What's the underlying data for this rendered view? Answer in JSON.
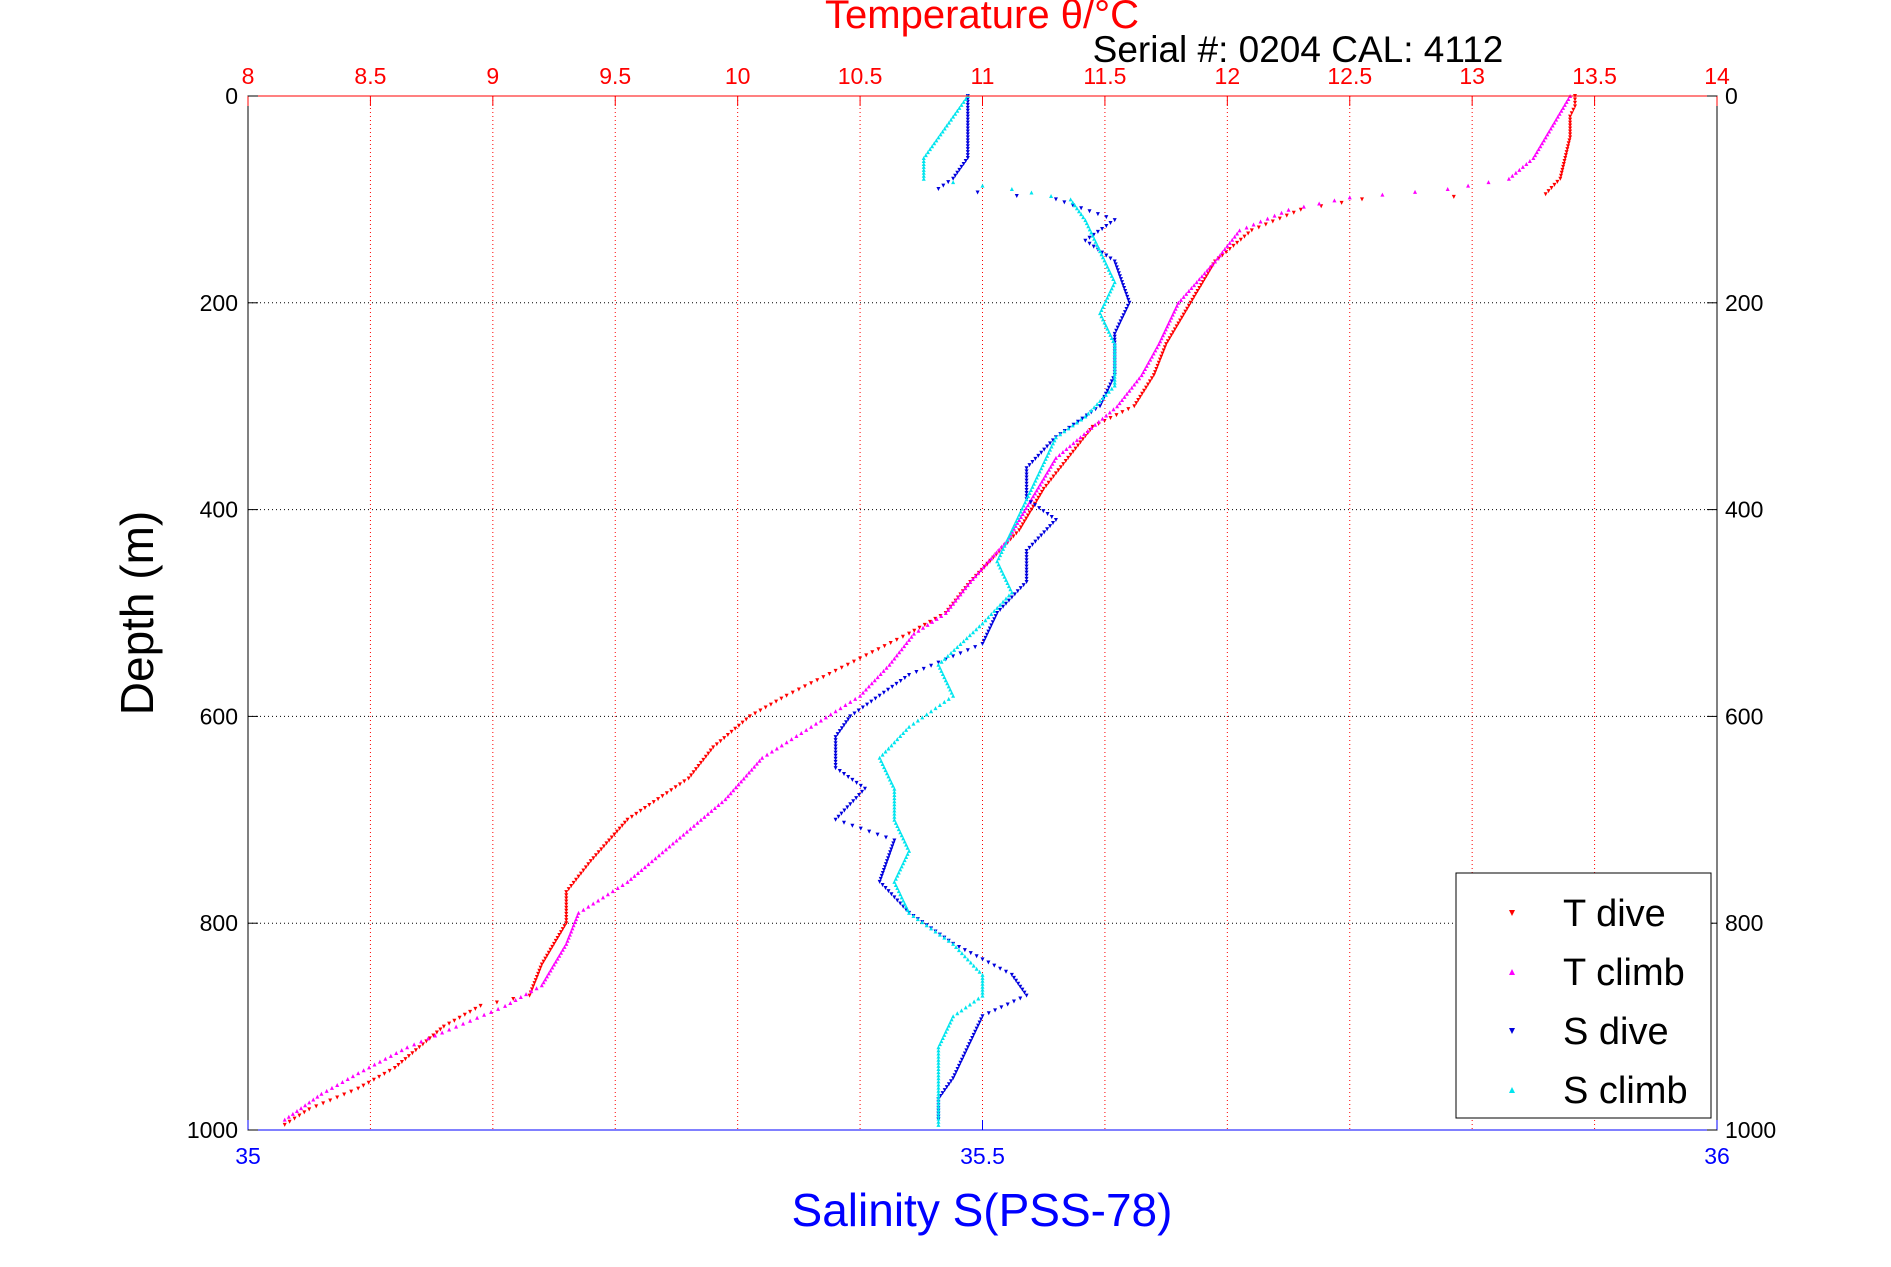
{
  "chart_data": {
    "type": "scatter",
    "title_top": "Temperature θ/°C",
    "serial_text": "Serial #: 0204  CAL: 4112",
    "xlabel_bottom": "Salinity S(PSS-78)",
    "ylabel": "Depth (m)",
    "ylim": [
      0,
      1000
    ],
    "yticks": [
      0,
      200,
      400,
      600,
      800,
      1000
    ],
    "y_inverted": true,
    "top_axis": {
      "range": [
        8,
        14
      ],
      "ticks": [
        "8",
        "8.5",
        "9",
        "9.5",
        "10",
        "10.5",
        "11",
        "11.5",
        "12",
        "12.5",
        "13",
        "13.5",
        "14"
      ]
    },
    "bottom_axis": {
      "range": [
        35,
        36
      ],
      "ticks": [
        "35",
        "35.5",
        "36"
      ]
    },
    "grid": true,
    "legend_position": "bottom-right",
    "legend": [
      "T dive",
      "T climb",
      "S dive",
      "S climb"
    ],
    "colors": {
      "T dive": "#ff0000",
      "T climb": "#ff00ff",
      "S dive": "#0000dd",
      "S climb": "#00e5ee",
      "top_axis": "#ff0000",
      "bottom_axis": "#0000ff",
      "grid_vertical": "#ff0000",
      "grid_horizontal": "#000000"
    },
    "series": [
      {
        "name": "T dive",
        "axis": "top",
        "marker": "triangle-down",
        "points": [
          [
            13.42,
            0
          ],
          [
            13.42,
            10
          ],
          [
            13.4,
            20
          ],
          [
            13.4,
            40
          ],
          [
            13.38,
            60
          ],
          [
            13.36,
            80
          ],
          [
            13.3,
            95
          ],
          [
            12.55,
            100
          ],
          [
            12.3,
            110
          ],
          [
            12.1,
            130
          ],
          [
            11.95,
            160
          ],
          [
            11.85,
            200
          ],
          [
            11.75,
            240
          ],
          [
            11.7,
            270
          ],
          [
            11.62,
            300
          ],
          [
            11.45,
            320
          ],
          [
            11.35,
            350
          ],
          [
            11.25,
            380
          ],
          [
            11.2,
            400
          ],
          [
            11.15,
            420
          ],
          [
            10.95,
            470
          ],
          [
            10.85,
            500
          ],
          [
            10.7,
            520
          ],
          [
            10.45,
            550
          ],
          [
            10.2,
            580
          ],
          [
            10.05,
            600
          ],
          [
            9.9,
            630
          ],
          [
            9.8,
            660
          ],
          [
            9.55,
            700
          ],
          [
            9.4,
            740
          ],
          [
            9.3,
            770
          ],
          [
            9.3,
            800
          ],
          [
            9.2,
            840
          ],
          [
            9.15,
            870
          ],
          [
            8.95,
            880
          ],
          [
            8.8,
            900
          ],
          [
            8.6,
            940
          ],
          [
            8.45,
            960
          ],
          [
            8.25,
            980
          ],
          [
            8.15,
            995
          ]
        ]
      },
      {
        "name": "T climb",
        "axis": "top",
        "marker": "triangle-up",
        "points": [
          [
            13.4,
            0
          ],
          [
            13.35,
            20
          ],
          [
            13.3,
            40
          ],
          [
            13.25,
            60
          ],
          [
            13.15,
            80
          ],
          [
            12.9,
            90
          ],
          [
            12.5,
            98
          ],
          [
            12.25,
            110
          ],
          [
            12.05,
            130
          ],
          [
            11.95,
            160
          ],
          [
            11.8,
            200
          ],
          [
            11.72,
            240
          ],
          [
            11.65,
            270
          ],
          [
            11.55,
            300
          ],
          [
            11.4,
            330
          ],
          [
            11.3,
            350
          ],
          [
            11.2,
            390
          ],
          [
            11.1,
            430
          ],
          [
            10.95,
            470
          ],
          [
            10.85,
            500
          ],
          [
            10.72,
            520
          ],
          [
            10.62,
            550
          ],
          [
            10.5,
            580
          ],
          [
            10.3,
            610
          ],
          [
            10.1,
            640
          ],
          [
            9.95,
            680
          ],
          [
            9.75,
            720
          ],
          [
            9.55,
            760
          ],
          [
            9.35,
            790
          ],
          [
            9.3,
            820
          ],
          [
            9.2,
            860
          ],
          [
            9.05,
            880
          ],
          [
            8.85,
            900
          ],
          [
            8.65,
            920
          ],
          [
            8.45,
            945
          ],
          [
            8.3,
            965
          ],
          [
            8.15,
            990
          ]
        ]
      },
      {
        "name": "S dive",
        "axis": "bottom",
        "marker": "triangle-down",
        "points": [
          [
            35.49,
            0
          ],
          [
            35.49,
            20
          ],
          [
            35.49,
            40
          ],
          [
            35.49,
            60
          ],
          [
            35.48,
            80
          ],
          [
            35.47,
            90
          ],
          [
            35.55,
            100
          ],
          [
            35.59,
            120
          ],
          [
            35.57,
            140
          ],
          [
            35.59,
            160
          ],
          [
            35.6,
            200
          ],
          [
            35.59,
            230
          ],
          [
            35.59,
            270
          ],
          [
            35.58,
            300
          ],
          [
            35.55,
            330
          ],
          [
            35.53,
            360
          ],
          [
            35.53,
            390
          ],
          [
            35.55,
            410
          ],
          [
            35.53,
            440
          ],
          [
            35.53,
            470
          ],
          [
            35.51,
            500
          ],
          [
            35.5,
            530
          ],
          [
            35.45,
            560
          ],
          [
            35.43,
            580
          ],
          [
            35.41,
            600
          ],
          [
            35.4,
            620
          ],
          [
            35.4,
            650
          ],
          [
            35.42,
            670
          ],
          [
            35.4,
            700
          ],
          [
            35.44,
            720
          ],
          [
            35.43,
            760
          ],
          [
            35.45,
            790
          ],
          [
            35.48,
            820
          ],
          [
            35.52,
            850
          ],
          [
            35.53,
            870
          ],
          [
            35.5,
            890
          ],
          [
            35.49,
            920
          ],
          [
            35.48,
            950
          ],
          [
            35.47,
            970
          ],
          [
            35.47,
            990
          ]
        ]
      },
      {
        "name": "S climb",
        "axis": "bottom",
        "marker": "triangle-up",
        "points": [
          [
            35.49,
            0
          ],
          [
            35.48,
            20
          ],
          [
            35.47,
            40
          ],
          [
            35.46,
            60
          ],
          [
            35.46,
            80
          ],
          [
            35.52,
            90
          ],
          [
            35.56,
            100
          ],
          [
            35.57,
            120
          ],
          [
            35.58,
            150
          ],
          [
            35.59,
            180
          ],
          [
            35.58,
            210
          ],
          [
            35.59,
            240
          ],
          [
            35.59,
            280
          ],
          [
            35.57,
            310
          ],
          [
            35.55,
            330
          ],
          [
            35.54,
            360
          ],
          [
            35.53,
            390
          ],
          [
            35.52,
            420
          ],
          [
            35.51,
            450
          ],
          [
            35.52,
            480
          ],
          [
            35.5,
            510
          ],
          [
            35.47,
            550
          ],
          [
            35.48,
            580
          ],
          [
            35.45,
            610
          ],
          [
            35.43,
            640
          ],
          [
            35.44,
            670
          ],
          [
            35.44,
            700
          ],
          [
            35.45,
            730
          ],
          [
            35.44,
            760
          ],
          [
            35.45,
            790
          ],
          [
            35.48,
            820
          ],
          [
            35.5,
            850
          ],
          [
            35.5,
            870
          ],
          [
            35.48,
            890
          ],
          [
            35.47,
            920
          ],
          [
            35.47,
            950
          ],
          [
            35.47,
            980
          ],
          [
            35.47,
            995
          ]
        ]
      }
    ]
  }
}
